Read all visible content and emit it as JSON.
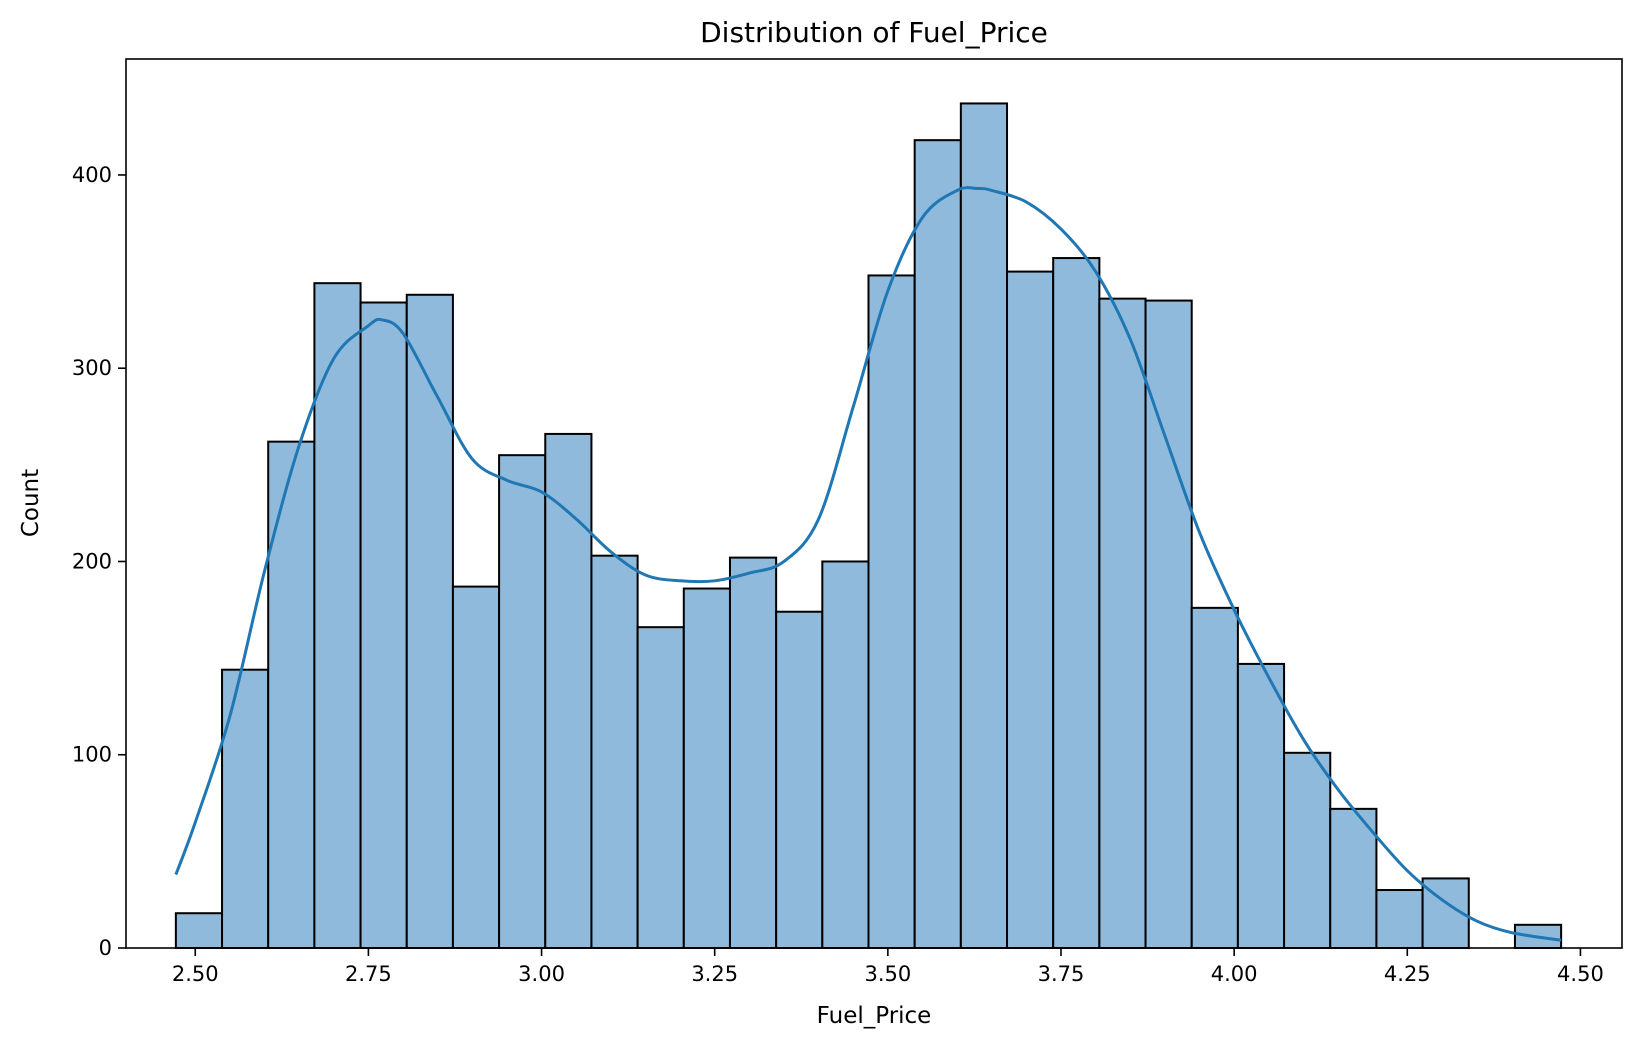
{
  "chart_data": {
    "type": "bar",
    "title": "Distribution of Fuel_Price",
    "xlabel": "Fuel_Price",
    "ylabel": "Count",
    "xlim": [
      2.4,
      4.56
    ],
    "ylim": [
      0,
      460
    ],
    "x_ticks": [
      2.5,
      2.75,
      3.0,
      3.25,
      3.5,
      3.75,
      4.0,
      4.25,
      4.5
    ],
    "x_tick_labels": [
      "2.50",
      "2.75",
      "3.00",
      "3.25",
      "3.50",
      "3.75",
      "4.00",
      "4.25",
      "4.50"
    ],
    "y_ticks": [
      0,
      100,
      200,
      300,
      400
    ],
    "y_tick_labels": [
      "0",
      "100",
      "200",
      "300",
      "400"
    ],
    "bins": {
      "start": 2.472,
      "width": 0.06667,
      "counts": [
        18,
        144,
        262,
        344,
        334,
        338,
        187,
        255,
        266,
        203,
        166,
        186,
        202,
        174,
        200,
        348,
        418,
        437,
        350,
        357,
        336,
        335,
        176,
        147,
        101,
        72,
        30,
        36,
        0,
        12
      ]
    },
    "kde": {
      "x": [
        2.472,
        2.5,
        2.55,
        2.6,
        2.65,
        2.7,
        2.75,
        2.77,
        2.8,
        2.85,
        2.9,
        2.95,
        3.0,
        3.05,
        3.1,
        3.15,
        3.2,
        3.25,
        3.3,
        3.35,
        3.4,
        3.45,
        3.5,
        3.55,
        3.6,
        3.63,
        3.65,
        3.7,
        3.75,
        3.8,
        3.85,
        3.9,
        3.95,
        4.0,
        4.05,
        4.1,
        4.15,
        4.2,
        4.25,
        4.3,
        4.35,
        4.4,
        4.472
      ],
      "y": [
        38,
        65,
        120,
        195,
        260,
        305,
        322,
        325,
        318,
        285,
        253,
        242,
        236,
        222,
        205,
        193,
        190,
        190,
        194,
        200,
        222,
        280,
        340,
        378,
        392,
        393,
        392,
        386,
        372,
        350,
        315,
        265,
        215,
        175,
        140,
        108,
        82,
        60,
        40,
        25,
        14,
        8,
        4
      ]
    },
    "grid": false,
    "bar_fill": "#8fbadc",
    "bar_edge": "#000000",
    "kde_color": "#1f77b4"
  }
}
